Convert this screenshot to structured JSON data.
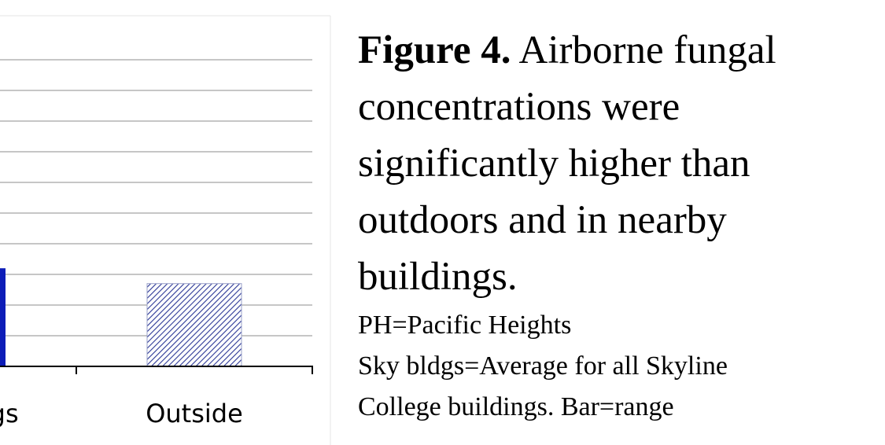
{
  "chart_data": {
    "type": "bar",
    "categories": [
      "Sky bldgs",
      "Outside"
    ],
    "values": [
      3.2,
      2.7
    ],
    "colors": [
      "#0d1db8",
      "#2b3796"
    ],
    "hatch": [
      false,
      true
    ],
    "ylim": [
      0,
      10
    ],
    "yticks": [
      0,
      1,
      2,
      3,
      4,
      5,
      6,
      7,
      8,
      9,
      10
    ],
    "grid": true
  },
  "caption": {
    "label": "Figure 4.",
    "text": "Airborne fungal concentrations were significantly higher than outdoors and in nearby buildings.",
    "notes": [
      "PH=Pacific Heights",
      "Sky bldgs=Average for all Skyline",
      "College buildings. Bar=range"
    ]
  }
}
